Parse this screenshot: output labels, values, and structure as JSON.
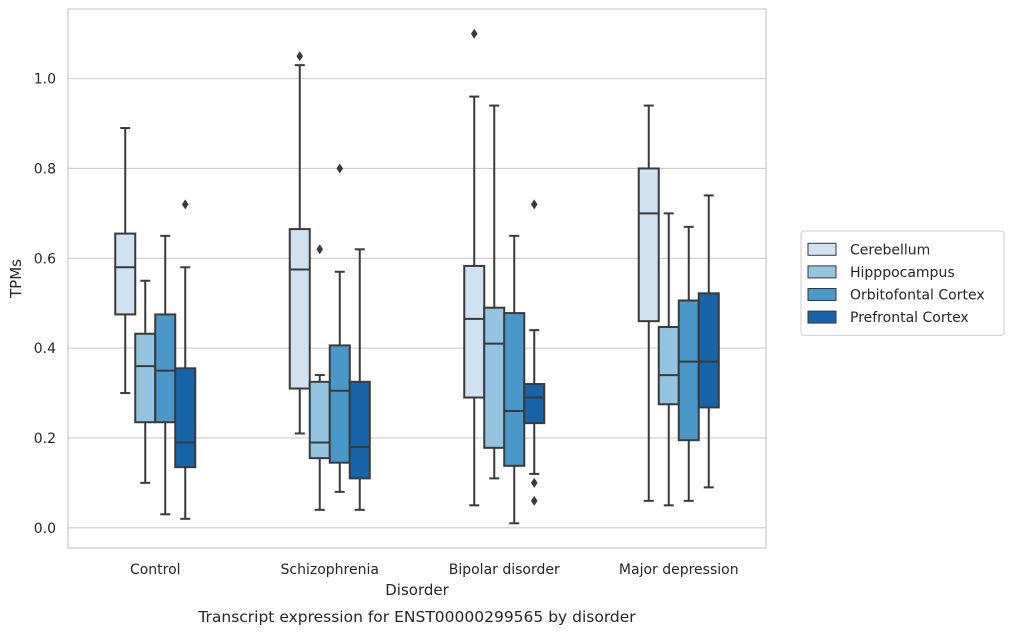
{
  "chart_data": {
    "type": "box",
    "caption": "Transcript expression for ENST00000299565 by disorder",
    "xlabel": "Disorder",
    "ylabel": "TPMs",
    "ylim": [
      -0.045,
      1.155
    ],
    "yticks": [
      0.0,
      0.2,
      0.4,
      0.6,
      0.8,
      1.0
    ],
    "grid": "horizontal",
    "legend_position": "right",
    "categories": [
      "Control",
      "Schizophrenia",
      "Bipolar disorder",
      "Major depression"
    ],
    "series": [
      {
        "name": "Cerebellum",
        "color": "#d0e1f2",
        "boxes": [
          {
            "whislo": 0.3,
            "q1": 0.475,
            "med": 0.58,
            "q3": 0.655,
            "whishi": 0.89,
            "fliers": []
          },
          {
            "whislo": 0.21,
            "q1": 0.31,
            "med": 0.575,
            "q3": 0.665,
            "whishi": 1.03,
            "fliers": [
              1.05
            ]
          },
          {
            "whislo": 0.05,
            "q1": 0.29,
            "med": 0.465,
            "q3": 0.583,
            "whishi": 0.96,
            "fliers": [
              1.1
            ]
          },
          {
            "whislo": 0.06,
            "q1": 0.46,
            "med": 0.7,
            "q3": 0.8,
            "whishi": 0.94,
            "fliers": []
          }
        ]
      },
      {
        "name": "Hipppocampus",
        "color": "#94c4df",
        "boxes": [
          {
            "whislo": 0.1,
            "q1": 0.235,
            "med": 0.36,
            "q3": 0.432,
            "whishi": 0.55,
            "fliers": []
          },
          {
            "whislo": 0.04,
            "q1": 0.155,
            "med": 0.19,
            "q3": 0.325,
            "whishi": 0.34,
            "fliers": [
              0.62
            ]
          },
          {
            "whislo": 0.11,
            "q1": 0.178,
            "med": 0.41,
            "q3": 0.49,
            "whishi": 0.94,
            "fliers": []
          },
          {
            "whislo": 0.05,
            "q1": 0.275,
            "med": 0.34,
            "q3": 0.447,
            "whishi": 0.7,
            "fliers": []
          }
        ]
      },
      {
        "name": "Orbitofontal Cortex",
        "color": "#4a98c9",
        "boxes": [
          {
            "whislo": 0.03,
            "q1": 0.235,
            "med": 0.35,
            "q3": 0.475,
            "whishi": 0.65,
            "fliers": []
          },
          {
            "whislo": 0.08,
            "q1": 0.145,
            "med": 0.305,
            "q3": 0.406,
            "whishi": 0.57,
            "fliers": [
              0.8
            ]
          },
          {
            "whislo": 0.01,
            "q1": 0.138,
            "med": 0.26,
            "q3": 0.478,
            "whishi": 0.65,
            "fliers": []
          },
          {
            "whislo": 0.06,
            "q1": 0.195,
            "med": 0.37,
            "q3": 0.506,
            "whishi": 0.67,
            "fliers": []
          }
        ]
      },
      {
        "name": "Prefrontal Cortex",
        "color": "#1764ab",
        "boxes": [
          {
            "whislo": 0.02,
            "q1": 0.135,
            "med": 0.19,
            "q3": 0.355,
            "whishi": 0.58,
            "fliers": [
              0.72
            ]
          },
          {
            "whislo": 0.04,
            "q1": 0.11,
            "med": 0.18,
            "q3": 0.325,
            "whishi": 0.62,
            "fliers": []
          },
          {
            "whislo": 0.12,
            "q1": 0.233,
            "med": 0.29,
            "q3": 0.32,
            "whishi": 0.44,
            "fliers": [
              0.72,
              0.1,
              0.06
            ]
          },
          {
            "whislo": 0.09,
            "q1": 0.268,
            "med": 0.37,
            "q3": 0.522,
            "whishi": 0.74,
            "fliers": []
          }
        ]
      }
    ]
  }
}
